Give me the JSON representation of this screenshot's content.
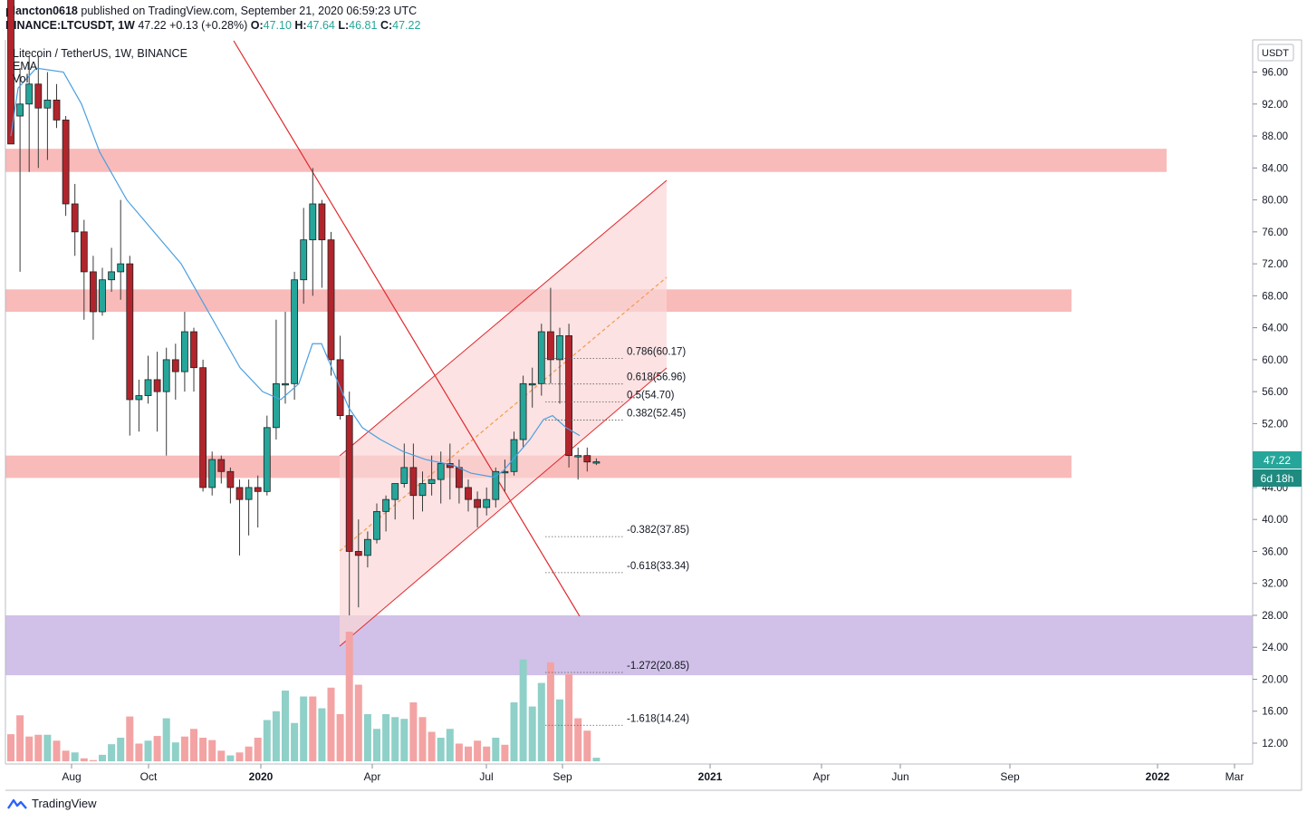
{
  "header": {
    "publisher": "plancton0618",
    "published_text": "published on TradingView.com, September 21, 2020 06:59:23 UTC",
    "symbol": "BINANCE:LTCUSDT, 1W",
    "last": "47.22",
    "change": "+0.13 (+0.28%)",
    "o_label": "O:",
    "o_value": "47.10",
    "h_label": "H:",
    "h_value": "47.64",
    "l_label": "L:",
    "l_value": "46.81",
    "c_label": "C:",
    "c_value": "47.22"
  },
  "legend": {
    "title": "Litecoin / TetherUS, 1W, BINANCE",
    "ema": "EMA",
    "vol": "Vol"
  },
  "footer": {
    "brand": "TradingView"
  },
  "colors": {
    "up": "#26a69a",
    "down": "#b2242c",
    "ema": "#4a9fe0",
    "zone_red": "#f8a9a9",
    "zone_purple": "#c6b2e2",
    "trendline": "#e0282c",
    "channel_fill": "#fbd5d5",
    "fib_mid": "#f19b4c"
  },
  "chart_data": {
    "type": "candlestick",
    "title": "Litecoin / TetherUS, 1W, BINANCE",
    "price_unit": "USDT",
    "ylim": [
      10,
      98
    ],
    "y_ticks": [
      "96.00",
      "92.00",
      "88.00",
      "84.00",
      "80.00",
      "76.00",
      "72.00",
      "68.00",
      "64.00",
      "60.00",
      "56.00",
      "52.00",
      "48.00",
      "44.00",
      "40.00",
      "36.00",
      "32.00",
      "28.00",
      "24.00",
      "20.00",
      "16.00",
      "12.00"
    ],
    "x_ticks": [
      {
        "label": "Aug",
        "bold": false
      },
      {
        "label": "Oct",
        "bold": false
      },
      {
        "label": "2020",
        "bold": true
      },
      {
        "label": "Apr",
        "bold": false
      },
      {
        "label": "Jul",
        "bold": false
      },
      {
        "label": "Sep",
        "bold": false
      },
      {
        "label": "2021",
        "bold": true
      },
      {
        "label": "Apr",
        "bold": false
      },
      {
        "label": "Jun",
        "bold": false
      },
      {
        "label": "Sep",
        "bold": false
      },
      {
        "label": "2022",
        "bold": true
      },
      {
        "label": "Mar",
        "bold": false
      }
    ],
    "last_price": "47.22",
    "countdown": "6d 18h",
    "candles": [
      [
        115,
        98,
        95.5,
        87,
        90.5
      ],
      [
        90.5,
        96.5,
        71,
        92
      ],
      [
        92,
        98,
        83.5,
        94.5
      ],
      [
        94.5,
        98,
        84,
        91.5
      ],
      [
        91.5,
        96,
        85,
        92.5
      ],
      [
        92.5,
        94.5,
        89,
        90
      ],
      [
        90,
        90.5,
        78,
        79.5
      ],
      [
        79.5,
        82,
        73,
        76
      ],
      [
        76,
        77.5,
        65,
        71
      ],
      [
        71,
        73,
        62.5,
        66
      ],
      [
        66,
        71.5,
        65.5,
        70
      ],
      [
        70,
        74,
        68.5,
        71
      ],
      [
        71,
        80,
        67.5,
        72
      ],
      [
        72,
        73,
        50.5,
        55
      ],
      [
        55,
        57.5,
        51,
        55.5
      ],
      [
        55.5,
        60.5,
        54.5,
        57.5
      ],
      [
        57.5,
        61,
        51,
        56
      ],
      [
        56,
        61.5,
        48,
        60
      ],
      [
        60,
        62,
        55,
        58.5
      ],
      [
        58.5,
        66,
        56,
        63.5
      ],
      [
        63.5,
        64,
        56,
        59
      ],
      [
        59,
        60,
        43.5,
        44
      ],
      [
        44,
        48.5,
        43,
        47.5
      ],
      [
        47.5,
        48,
        44.5,
        46
      ],
      [
        46,
        46.5,
        42,
        44
      ],
      [
        44,
        45,
        35.5,
        42.5
      ],
      [
        42.5,
        45,
        38,
        44
      ],
      [
        44,
        45.5,
        39,
        43.5
      ],
      [
        43.5,
        53,
        43,
        51.5
      ],
      [
        51.5,
        65,
        50,
        57
      ],
      [
        57,
        66,
        54.5,
        57
      ],
      [
        57,
        71,
        55,
        70
      ],
      [
        70,
        79,
        67,
        75
      ],
      [
        75,
        84,
        68,
        79.5
      ],
      [
        79.5,
        80,
        69,
        75
      ],
      [
        75,
        76,
        58,
        60
      ],
      [
        60,
        63,
        52.5,
        53
      ],
      [
        53,
        56,
        28,
        36
      ],
      [
        36,
        40,
        29,
        35.5
      ],
      [
        35.5,
        38.5,
        34,
        37.5
      ],
      [
        37.5,
        42,
        37,
        41
      ],
      [
        41,
        43,
        38.5,
        42.5
      ],
      [
        42.5,
        44,
        40,
        44.5
      ],
      [
        44.5,
        49.5,
        44,
        46.5
      ],
      [
        46.5,
        49.5,
        40,
        43
      ],
      [
        43,
        46,
        41,
        44.5
      ],
      [
        44.5,
        48,
        43,
        45
      ],
      [
        45,
        48.5,
        42,
        47
      ],
      [
        47,
        49.5,
        42.5,
        46.5
      ],
      [
        46.5,
        47.5,
        42,
        44
      ],
      [
        44,
        45,
        41,
        42.5
      ],
      [
        42.5,
        43.5,
        39,
        41.5
      ],
      [
        41.5,
        44,
        40.5,
        42.5
      ],
      [
        42.5,
        46.5,
        41.5,
        46
      ],
      [
        46,
        47.5,
        43.5,
        46
      ],
      [
        46,
        51,
        45.5,
        50
      ],
      [
        50,
        58,
        49,
        57
      ],
      [
        57,
        59,
        54,
        57
      ],
      [
        57,
        64.5,
        55.5,
        63.5
      ],
      [
        63.5,
        69,
        57,
        60
      ],
      [
        60,
        64,
        54.5,
        63
      ],
      [
        63,
        64.5,
        46.5,
        48
      ],
      [
        48,
        49,
        45,
        48
      ],
      [
        48,
        49,
        46,
        47.2
      ],
      [
        47.1,
        47.64,
        46.81,
        47.22
      ]
    ],
    "volumes": [
      [
        14.6,
        false
      ],
      [
        17.8,
        false
      ],
      [
        14.2,
        false
      ],
      [
        14.5,
        false
      ],
      [
        14.5,
        true
      ],
      [
        13.5,
        false
      ],
      [
        11.8,
        false
      ],
      [
        11.5,
        true
      ],
      [
        10.5,
        false
      ],
      [
        10.2,
        false
      ],
      [
        11.1,
        true
      ],
      [
        12.9,
        true
      ],
      [
        14.0,
        true
      ],
      [
        17.6,
        false
      ],
      [
        13.0,
        false
      ],
      [
        13.5,
        true
      ],
      [
        14.3,
        false
      ],
      [
        17.3,
        true
      ],
      [
        13.2,
        true
      ],
      [
        14.2,
        false
      ],
      [
        15.5,
        false
      ],
      [
        14.0,
        false
      ],
      [
        13.6,
        false
      ],
      [
        11.8,
        false
      ],
      [
        11.0,
        true
      ],
      [
        11.5,
        false
      ],
      [
        12.5,
        false
      ],
      [
        14.0,
        false
      ],
      [
        17.0,
        true
      ],
      [
        18.5,
        true
      ],
      [
        22.0,
        true
      ],
      [
        16.5,
        true
      ],
      [
        21.0,
        true
      ],
      [
        21.0,
        false
      ],
      [
        19.0,
        true
      ],
      [
        22.5,
        false
      ],
      [
        18.0,
        false
      ],
      [
        32.0,
        false
      ],
      [
        23.0,
        false
      ],
      [
        18.0,
        true
      ],
      [
        15.5,
        true
      ],
      [
        18.0,
        true
      ],
      [
        17.5,
        true
      ],
      [
        17.2,
        true
      ],
      [
        20.0,
        false
      ],
      [
        17.5,
        false
      ],
      [
        15.0,
        false
      ],
      [
        14.0,
        true
      ],
      [
        15.5,
        true
      ],
      [
        13.0,
        false
      ],
      [
        12.5,
        false
      ],
      [
        13.5,
        false
      ],
      [
        12.5,
        false
      ],
      [
        14.0,
        true
      ],
      [
        12.8,
        false
      ],
      [
        20.0,
        true
      ],
      [
        27.3,
        true
      ],
      [
        19.3,
        true
      ],
      [
        23.3,
        true
      ],
      [
        26.8,
        false
      ],
      [
        20.5,
        true
      ],
      [
        24.8,
        false
      ],
      [
        17.3,
        false
      ],
      [
        15.2,
        false
      ],
      [
        10.6,
        true
      ]
    ],
    "ema_points": [
      [
        12,
        88
      ],
      [
        20,
        94
      ],
      [
        40,
        96.5
      ],
      [
        70,
        96
      ],
      [
        90,
        92
      ],
      [
        110,
        86
      ],
      [
        140,
        80
      ],
      [
        170,
        76
      ],
      [
        200,
        72
      ],
      [
        215,
        69
      ],
      [
        240,
        64
      ],
      [
        265,
        59
      ],
      [
        290,
        56
      ],
      [
        310,
        55
      ],
      [
        330,
        57
      ],
      [
        345,
        62
      ],
      [
        355,
        62
      ],
      [
        370,
        58
      ],
      [
        385,
        54
      ],
      [
        400,
        51.5
      ],
      [
        420,
        50
      ],
      [
        445,
        48.5
      ],
      [
        470,
        47.5
      ],
      [
        500,
        46.8
      ],
      [
        520,
        45.8
      ],
      [
        545,
        45.3
      ],
      [
        555,
        46
      ],
      [
        570,
        48
      ],
      [
        585,
        50
      ],
      [
        600,
        52.5
      ],
      [
        610,
        53
      ],
      [
        625,
        51.5
      ],
      [
        640,
        50.5
      ]
    ],
    "zones": [
      {
        "y1": 83.5,
        "y2": 86.4,
        "x2": 1288,
        "kind": "red"
      },
      {
        "y1": 66,
        "y2": 68.8,
        "x2": 1183,
        "kind": "red"
      },
      {
        "y1": 45.2,
        "y2": 48,
        "x2": 1183,
        "kind": "red"
      },
      {
        "y1": 20.5,
        "y2": 28,
        "x2": 1383,
        "kind": "purple"
      }
    ],
    "fib_levels": [
      {
        "label": "0.786(60.17)",
        "value": 60.17
      },
      {
        "label": "0.618(56.96)",
        "value": 56.96
      },
      {
        "label": "0.5(54.70)",
        "value": 54.7
      },
      {
        "label": "0.382(52.45)",
        "value": 52.45
      },
      {
        "label": "-0.382(37.85)",
        "value": 37.85
      },
      {
        "label": "-0.618(33.34)",
        "value": 33.34
      },
      {
        "label": "-1.272(20.85)",
        "value": 20.85
      },
      {
        "label": "-1.618(14.24)",
        "value": 14.24
      }
    ]
  }
}
